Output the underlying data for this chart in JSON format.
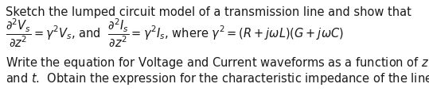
{
  "background_color": "#ffffff",
  "text_color": "#1a1a1a",
  "figsize": [
    5.39,
    1.25
  ],
  "dpi": 100,
  "fs_plain": 10.5,
  "fs_math": 10.5,
  "line1": "Sketch the lumped circuit model of a transmission line and show that",
  "line4": "Write the equation for Voltage and Current waveforms as a function of $z$",
  "line5": "and $t$.  Obtain the expression for the characteristic impedance of the line.",
  "eq": "$\\dfrac{\\partial^2 V_s}{\\partial z^2} = \\gamma^2 V_s$, and  $\\dfrac{\\partial^2 I_s}{\\partial z^2} = \\gamma^2 I_s$, where $\\gamma^2 = (R + j\\omega L)(G + j\\omega C)$"
}
